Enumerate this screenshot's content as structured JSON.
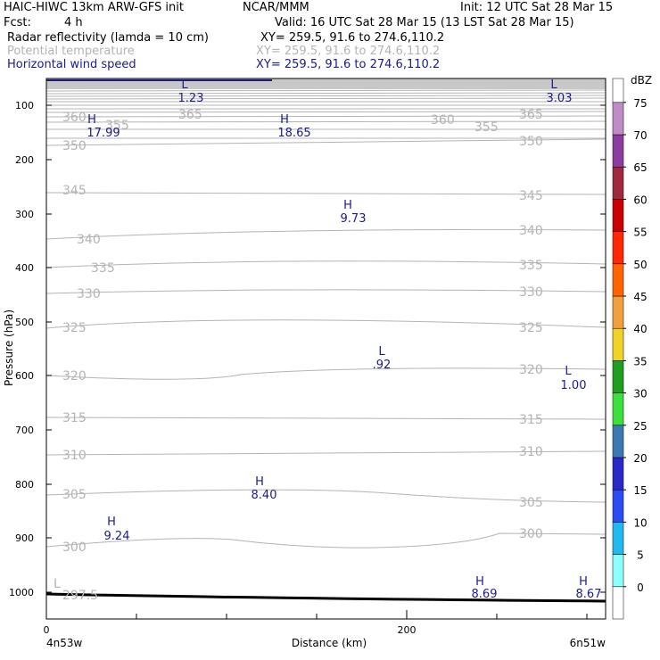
{
  "header": {
    "model": "HAIC-HIWC 13km ARW-GFS init",
    "org": "NCAR/MMM",
    "init": "Init: 12 UTC Sat 28 Mar 15",
    "fcst_label": "Fcst:",
    "fcst_value": "4 h",
    "valid": "Valid: 16 UTC Sat 28 Mar 15 (13 LST Sat 28 Mar 15)",
    "fields": [
      {
        "name": "Radar reflectivity (lamda = 10 cm)",
        "xy": "XY= 259.5, 91.6 to 274.6,110.2",
        "color": "#000000"
      },
      {
        "name": "Potential temperature",
        "xy": "XY= 259.5, 91.6 to 274.6,110.2",
        "color": "#b4b4b4"
      },
      {
        "name": "Horizontal wind speed",
        "xy": "XY= 259.5, 91.6 to 274.6,110.2",
        "color": "#1b1b8c"
      }
    ]
  },
  "chart_data": {
    "type": "cross-section",
    "xlabel": "Distance (km)",
    "ylabel": "Pressure (hPa)",
    "x_ticks": [
      "0",
      "200"
    ],
    "x_start_label": "4n53w",
    "x_end_label": "6n51w",
    "y_ticks": [
      "100",
      "200",
      "300",
      "400",
      "500",
      "600",
      "700",
      "800",
      "900",
      "1000"
    ],
    "theta_labels": [
      "365",
      "360",
      "355",
      "350",
      "345",
      "340",
      "335",
      "330",
      "325",
      "320",
      "315",
      "310",
      "305",
      "300",
      "297.5"
    ],
    "wind_extrema": [
      {
        "kind": "L",
        "value": "1.23"
      },
      {
        "kind": "L",
        "value": "3.03"
      },
      {
        "kind": "H",
        "value": "17.99"
      },
      {
        "kind": "H",
        "value": "18.65"
      },
      {
        "kind": "H",
        "value": "9.73"
      },
      {
        "kind": "L",
        "value": ".92"
      },
      {
        "kind": "L",
        "value": "1.00"
      },
      {
        "kind": "H",
        "value": "8.40"
      },
      {
        "kind": "H",
        "value": "9.24"
      },
      {
        "kind": "H",
        "value": "8.69"
      },
      {
        "kind": "H",
        "value": "8.67"
      },
      {
        "kind": "L",
        "value": ""
      }
    ],
    "colorbar": {
      "unit": "dBZ",
      "labels": [
        "0",
        "5",
        "10",
        "15",
        "20",
        "25",
        "30",
        "35",
        "40",
        "45",
        "50",
        "55",
        "60",
        "65",
        "70",
        "75"
      ],
      "colors": [
        "#ffffff",
        "#8cffff",
        "#22b8f0",
        "#2a4cf2",
        "#2a28c8",
        "#3c78b4",
        "#3ce03c",
        "#1ea01e",
        "#f0d228",
        "#f0a03c",
        "#ff6400",
        "#ff2800",
        "#c80000",
        "#a0283c",
        "#8c3ca0",
        "#c08cc8",
        "#ffffff"
      ]
    }
  }
}
